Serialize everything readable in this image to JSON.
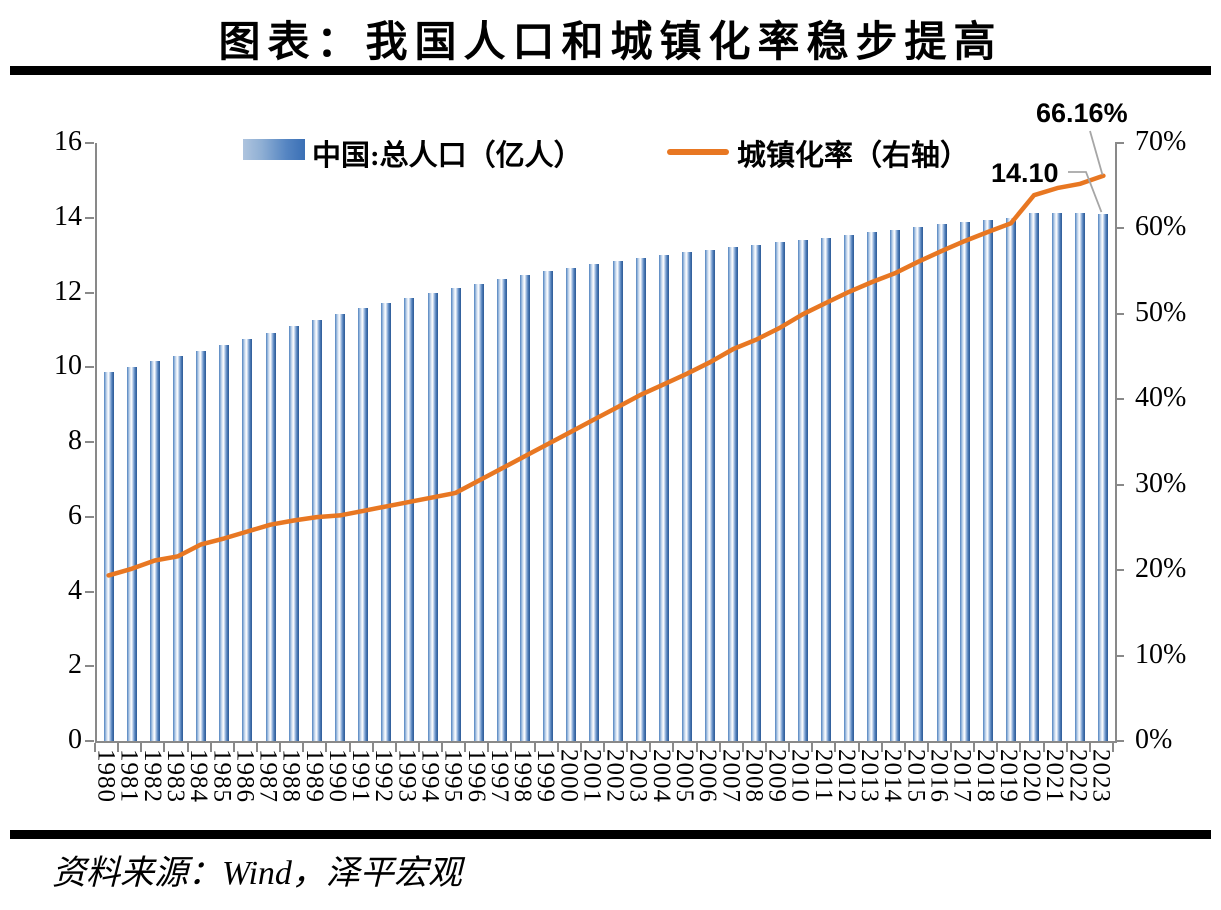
{
  "page": {
    "title": "图表：我国人口和城镇化率稳步提高",
    "source": "资料来源：Wind，泽平宏观"
  },
  "legend": {
    "items": [
      {
        "label": "中国:总人口（亿人）",
        "swatch": "blue-gradient-bar"
      },
      {
        "label": "城镇化率（右轴）",
        "swatch": "orange-line"
      }
    ]
  },
  "annotations": [
    {
      "text": "66.16%",
      "target": "urbanization-line-end"
    },
    {
      "text": "14.10",
      "target": "last-population-bar"
    }
  ],
  "chart_data": {
    "type": "bar+line",
    "title": "图表：我国人口和城镇化率稳步提高",
    "categories": [
      "1980",
      "1981",
      "1982",
      "1983",
      "1984",
      "1985",
      "1986",
      "1987",
      "1988",
      "1989",
      "1990",
      "1991",
      "1992",
      "1993",
      "1994",
      "1995",
      "1996",
      "1997",
      "1998",
      "1999",
      "2000",
      "2001",
      "2002",
      "2003",
      "2004",
      "2005",
      "2006",
      "2007",
      "2008",
      "2009",
      "2010",
      "2011",
      "2012",
      "2013",
      "2014",
      "2015",
      "2016",
      "2017",
      "2018",
      "2019",
      "2020",
      "2021",
      "2022",
      "2023"
    ],
    "series": [
      {
        "name": "中国:总人口（亿人）",
        "type": "bar",
        "axis": "left",
        "values": [
          9.87,
          10.01,
          10.17,
          10.3,
          10.44,
          10.59,
          10.75,
          10.93,
          11.1,
          11.27,
          11.43,
          11.58,
          11.72,
          11.85,
          11.99,
          12.11,
          12.24,
          12.36,
          12.48,
          12.58,
          12.67,
          12.76,
          12.85,
          12.92,
          13.0,
          13.08,
          13.14,
          13.21,
          13.28,
          13.35,
          13.41,
          13.47,
          13.54,
          13.61,
          13.68,
          13.75,
          13.83,
          13.9,
          13.95,
          14.0,
          14.12,
          14.13,
          14.12,
          14.1
        ]
      },
      {
        "name": "城镇化率（右轴）",
        "type": "line",
        "axis": "right",
        "values": [
          19.39,
          20.16,
          21.13,
          21.62,
          23.01,
          23.71,
          24.52,
          25.32,
          25.81,
          26.21,
          26.41,
          26.94,
          27.46,
          27.99,
          28.51,
          29.04,
          30.48,
          31.91,
          33.35,
          34.78,
          36.22,
          37.66,
          39.09,
          40.53,
          41.76,
          42.99,
          44.34,
          45.89,
          46.99,
          48.34,
          49.95,
          51.27,
          52.57,
          53.73,
          54.77,
          56.1,
          57.35,
          58.52,
          59.58,
          60.6,
          63.89,
          64.72,
          65.22,
          66.16
        ]
      }
    ],
    "left_axis": {
      "min": 0,
      "max": 16,
      "step": 2,
      "tick_labels": [
        "0",
        "2",
        "4",
        "6",
        "8",
        "10",
        "12",
        "14",
        "16"
      ]
    },
    "right_axis": {
      "min": 0,
      "max": 70,
      "step": 10,
      "tick_labels": [
        "0%",
        "10%",
        "20%",
        "30%",
        "40%",
        "50%",
        "60%",
        "70%"
      ]
    },
    "grid": false,
    "legend_position": "top",
    "colors": {
      "bar_dark": "#2f5c97",
      "bar_mid": "#4f81bd",
      "bar_light": "#ffffff",
      "line": "#e87722",
      "axis": "#898989",
      "leader": "#a6a6a6",
      "text": "#000000"
    }
  }
}
